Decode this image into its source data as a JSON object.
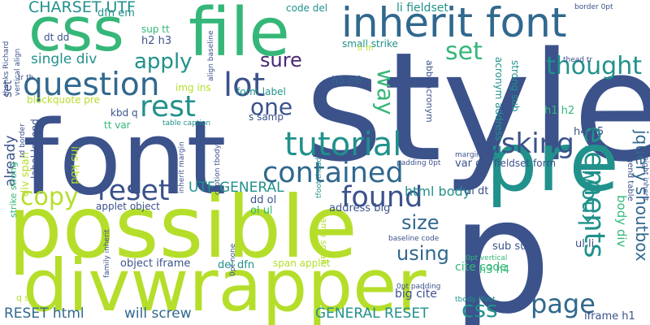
{
  "palette": {
    "navy": "#3b528b",
    "blue": "#31688e",
    "teal": "#21918c",
    "green": "#35b779",
    "lime": "#b5de2b",
    "purple": "#482878"
  },
  "words": [
    {
      "text": "style",
      "color": "navy"
    },
    {
      "text": "font",
      "color": "navy"
    },
    {
      "text": "file",
      "color": "green"
    },
    {
      "text": "p",
      "color": "navy"
    },
    {
      "text": "possible",
      "color": "lime"
    },
    {
      "text": "divwrapper",
      "color": "lime"
    },
    {
      "text": "css",
      "color": "green"
    },
    {
      "text": "pre",
      "color": "teal"
    },
    {
      "text": "inherit font",
      "color": "blue"
    },
    {
      "text": "question",
      "color": "blue"
    },
    {
      "text": "tutorial",
      "color": "teal"
    },
    {
      "text": "contained",
      "color": "blue"
    },
    {
      "text": "lot",
      "color": "navy"
    },
    {
      "text": "rest",
      "color": "teal"
    },
    {
      "text": "reset",
      "color": "navy"
    },
    {
      "text": "copy",
      "color": "lime"
    },
    {
      "text": "asking",
      "color": "navy"
    },
    {
      "text": "found",
      "color": "navy"
    },
    {
      "text": "elements",
      "color": "teal"
    },
    {
      "text": "apply",
      "color": "teal"
    },
    {
      "text": "set",
      "color": "green"
    },
    {
      "text": "thought",
      "color": "teal"
    },
    {
      "text": "sure",
      "color": "purple"
    },
    {
      "text": "one",
      "color": "navy"
    },
    {
      "text": "way",
      "color": "green"
    },
    {
      "text": "page",
      "color": "blue"
    },
    {
      "text": "css",
      "color": "teal"
    },
    {
      "text": "know",
      "color": "teal"
    },
    {
      "text": "using",
      "color": "blue"
    },
    {
      "text": "size",
      "color": "blue"
    },
    {
      "text": "jquery shoutbox",
      "color": "blue"
    },
    {
      "text": "UTF GENERAL",
      "color": "teal"
    },
    {
      "text": "CHARSET UTF",
      "color": "teal"
    },
    {
      "text": "single div",
      "color": "teal"
    },
    {
      "text": "RESET html",
      "color": "blue"
    },
    {
      "text": "will screw",
      "color": "blue"
    },
    {
      "text": "GENERAL RESET",
      "color": "teal"
    },
    {
      "text": "html body",
      "color": "teal"
    },
    {
      "text": "body div",
      "color": "green"
    },
    {
      "text": "already",
      "color": "navy"
    },
    {
      "text": "div span",
      "color": "lime"
    },
    {
      "text": "ins kbd",
      "color": "lime"
    },
    {
      "text": "set",
      "color": "navy"
    },
    {
      "text": "big cite",
      "color": "navy"
    },
    {
      "text": "address big",
      "color": "navy"
    },
    {
      "text": "dl dt",
      "color": "navy"
    },
    {
      "text": "cite code",
      "color": "green"
    },
    {
      "text": "del dfn",
      "color": "teal"
    },
    {
      "text": "object iframe",
      "color": "navy"
    },
    {
      "text": "applet object",
      "color": "navy"
    },
    {
      "text": "span applet",
      "color": "lime"
    },
    {
      "text": "sub sup",
      "color": "navy"
    },
    {
      "text": "ul li",
      "color": "navy"
    },
    {
      "text": "h3 h4",
      "color": "green"
    },
    {
      "text": "h1 h2",
      "color": "green"
    },
    {
      "text": "h4 h5",
      "color": "navy"
    },
    {
      "text": "h5 h6",
      "color": "blue"
    },
    {
      "text": "h2 h3",
      "color": "navy"
    },
    {
      "text": "iframe h1",
      "color": "navy"
    },
    {
      "text": "var dl",
      "color": "navy"
    },
    {
      "text": "fieldset form",
      "color": "navy"
    },
    {
      "text": "dd ol",
      "color": "navy"
    },
    {
      "text": "ol ul",
      "color": "green"
    },
    {
      "text": "dt dd",
      "color": "navy"
    },
    {
      "text": "dfn em",
      "color": "teal"
    },
    {
      "text": "sup tt",
      "color": "green"
    },
    {
      "text": "code del",
      "color": "teal"
    },
    {
      "text": "li fieldset",
      "color": "teal"
    },
    {
      "text": "small strike",
      "color": "teal"
    },
    {
      "text": "strong sub",
      "color": "teal"
    },
    {
      "text": "acronym address",
      "color": "teal"
    },
    {
      "text": "abbr acronym",
      "color": "navy"
    },
    {
      "text": "form label",
      "color": "teal"
    },
    {
      "text": "label legend",
      "color": "navy"
    },
    {
      "text": "blockquote pre",
      "color": "lime"
    },
    {
      "text": "img ins",
      "color": "lime"
    },
    {
      "text": "s samp",
      "color": "navy"
    },
    {
      "text": "kbd q",
      "color": "navy"
    },
    {
      "text": "tt var",
      "color": "green"
    },
    {
      "text": "samp small",
      "color": "lime"
    },
    {
      "text": "strike strong",
      "color": "green"
    },
    {
      "text": "q s",
      "color": "lime"
    },
    {
      "text": "table caption",
      "color": "teal"
    },
    {
      "text": "caption tbody",
      "color": "navy"
    },
    {
      "text": "tbody tfoot",
      "color": "teal"
    },
    {
      "text": "tfoot thead",
      "color": "teal"
    },
    {
      "text": "thead tr",
      "color": "navy"
    },
    {
      "text": "tr th",
      "color": "lime"
    },
    {
      "text": "td border",
      "color": "navy"
    },
    {
      "text": "border 0pt",
      "color": "navy"
    },
    {
      "text": "padding 0pt",
      "color": "navy"
    },
    {
      "text": "margin 0pt",
      "color": "navy"
    },
    {
      "text": "0pt padding",
      "color": "navy"
    },
    {
      "text": "0pt vertical",
      "color": "green"
    },
    {
      "text": "0pt none",
      "color": "navy"
    },
    {
      "text": "baseline code",
      "color": "navy"
    },
    {
      "text": "align baseline",
      "color": "navy"
    },
    {
      "text": "vertical align",
      "color": "navy"
    },
    {
      "text": "family inherit",
      "color": "navy"
    },
    {
      "text": "inherit margin",
      "color": "navy"
    },
    {
      "text": "weight inherit",
      "color": "navy"
    },
    {
      "text": "legend table",
      "color": "navy"
    },
    {
      "text": "thanks Richard",
      "color": "navy"
    },
    {
      "text": "tr th",
      "color": "navy"
    }
  ]
}
